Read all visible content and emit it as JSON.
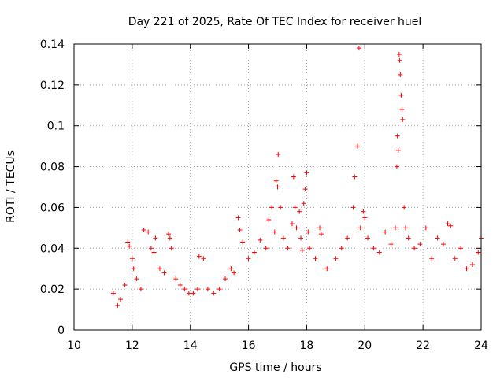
{
  "chart_data": {
    "type": "scatter",
    "title": "Day 221 of 2025, Rate Of TEC Index for receiver huel",
    "xlabel": "GPS time / hours",
    "ylabel": "ROTI / TECUs",
    "xlim": [
      10,
      24
    ],
    "ylim": [
      0,
      0.14
    ],
    "xticks": [
      10,
      12,
      14,
      16,
      18,
      20,
      22,
      24
    ],
    "yticks": [
      0,
      0.02,
      0.04,
      0.06,
      0.08,
      0.1,
      0.12,
      0.14
    ],
    "xtick_labels": [
      "10",
      "12",
      "14",
      "16",
      "18",
      "20",
      "22",
      "24"
    ],
    "ytick_labels": [
      "0",
      "0.02",
      "0.04",
      "0.06",
      "0.08",
      "0.1",
      "0.12",
      "0.14"
    ],
    "grid": true,
    "legend": "none",
    "marker": "+",
    "color": "#ff0000",
    "series": [
      {
        "points": [
          [
            11.35,
            0.018
          ],
          [
            11.5,
            0.012
          ],
          [
            11.6,
            0.015
          ],
          [
            11.75,
            0.022
          ],
          [
            11.85,
            0.043
          ],
          [
            11.9,
            0.041
          ],
          [
            12.0,
            0.035
          ],
          [
            12.05,
            0.03
          ],
          [
            12.15,
            0.025
          ],
          [
            12.3,
            0.02
          ],
          [
            12.4,
            0.049
          ],
          [
            12.55,
            0.048
          ],
          [
            12.65,
            0.04
          ],
          [
            12.75,
            0.038
          ],
          [
            12.8,
            0.045
          ],
          [
            12.95,
            0.03
          ],
          [
            13.1,
            0.028
          ],
          [
            13.25,
            0.047
          ],
          [
            13.3,
            0.045
          ],
          [
            13.35,
            0.04
          ],
          [
            13.5,
            0.025
          ],
          [
            13.65,
            0.022
          ],
          [
            13.8,
            0.02
          ],
          [
            13.95,
            0.018
          ],
          [
            14.1,
            0.018
          ],
          [
            14.25,
            0.02
          ],
          [
            14.3,
            0.036
          ],
          [
            14.45,
            0.035
          ],
          [
            14.6,
            0.02
          ],
          [
            14.8,
            0.018
          ],
          [
            15.0,
            0.02
          ],
          [
            15.2,
            0.025
          ],
          [
            15.4,
            0.03
          ],
          [
            15.5,
            0.028
          ],
          [
            15.65,
            0.055
          ],
          [
            15.7,
            0.049
          ],
          [
            15.8,
            0.043
          ],
          [
            16.0,
            0.035
          ],
          [
            16.2,
            0.038
          ],
          [
            16.4,
            0.044
          ],
          [
            16.6,
            0.04
          ],
          [
            16.7,
            0.054
          ],
          [
            16.8,
            0.06
          ],
          [
            16.9,
            0.048
          ],
          [
            16.95,
            0.073
          ],
          [
            17.0,
            0.07
          ],
          [
            17.02,
            0.086
          ],
          [
            17.1,
            0.06
          ],
          [
            17.2,
            0.045
          ],
          [
            17.35,
            0.04
          ],
          [
            17.5,
            0.052
          ],
          [
            17.55,
            0.075
          ],
          [
            17.6,
            0.06
          ],
          [
            17.65,
            0.05
          ],
          [
            17.75,
            0.058
          ],
          [
            17.8,
            0.045
          ],
          [
            17.85,
            0.039
          ],
          [
            17.9,
            0.062
          ],
          [
            17.95,
            0.069
          ],
          [
            18.0,
            0.077
          ],
          [
            18.05,
            0.048
          ],
          [
            18.1,
            0.04
          ],
          [
            18.3,
            0.035
          ],
          [
            18.45,
            0.05
          ],
          [
            18.5,
            0.047
          ],
          [
            18.7,
            0.03
          ],
          [
            19.0,
            0.035
          ],
          [
            19.2,
            0.04
          ],
          [
            19.4,
            0.045
          ],
          [
            19.6,
            0.06
          ],
          [
            19.65,
            0.075
          ],
          [
            19.75,
            0.09
          ],
          [
            19.8,
            0.138
          ],
          [
            19.85,
            0.05
          ],
          [
            19.95,
            0.058
          ],
          [
            20.0,
            0.055
          ],
          [
            20.1,
            0.045
          ],
          [
            20.3,
            0.04
          ],
          [
            20.5,
            0.038
          ],
          [
            20.7,
            0.048
          ],
          [
            20.9,
            0.042
          ],
          [
            21.05,
            0.05
          ],
          [
            21.1,
            0.08
          ],
          [
            21.12,
            0.095
          ],
          [
            21.15,
            0.088
          ],
          [
            21.18,
            0.135
          ],
          [
            21.2,
            0.132
          ],
          [
            21.22,
            0.125
          ],
          [
            21.25,
            0.115
          ],
          [
            21.28,
            0.108
          ],
          [
            21.3,
            0.103
          ],
          [
            21.35,
            0.06
          ],
          [
            21.4,
            0.05
          ],
          [
            21.5,
            0.045
          ],
          [
            21.7,
            0.04
          ],
          [
            21.9,
            0.042
          ],
          [
            22.1,
            0.05
          ],
          [
            22.3,
            0.035
          ],
          [
            22.5,
            0.045
          ],
          [
            22.7,
            0.042
          ],
          [
            22.85,
            0.052
          ],
          [
            22.95,
            0.051
          ],
          [
            23.1,
            0.035
          ],
          [
            23.3,
            0.04
          ],
          [
            23.5,
            0.03
          ],
          [
            23.7,
            0.032
          ],
          [
            23.9,
            0.038
          ],
          [
            24.0,
            0.045
          ]
        ]
      }
    ]
  }
}
